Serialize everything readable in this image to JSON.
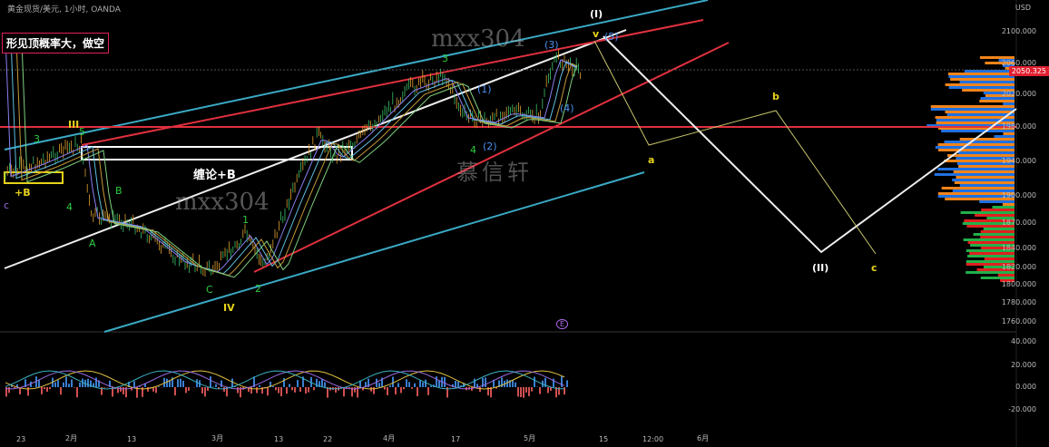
{
  "header": {
    "title": "黄金现货/美元, 1小时, OANDA",
    "currency": "USD",
    "current_price": "2050.325"
  },
  "annotation_box": "形见顶概率大，做空",
  "watermarks": [
    "mxx304",
    "mxx304",
    "慕信轩"
  ],
  "pattern_label": "缠论+B",
  "wave_labels": {
    "I": "(I)",
    "II": "(II)",
    "III": "III",
    "IV": "IV",
    "a": "a",
    "b": "b",
    "c": "c",
    "plusB": "+B",
    "g1": "1",
    "g2": "2",
    "g3": "3",
    "g4": "4",
    "g5": "5",
    "gA": "A",
    "gB": "B",
    "gC": "C",
    "b1": "(1)",
    "b2": "(2)",
    "b3": "(3)",
    "b4": "(4)",
    "b5": "(5)",
    "y4": "4",
    "y3": "3",
    "v": "v",
    "c_small": "c",
    "event": "E"
  },
  "chart_data": {
    "type": "line",
    "title": "黄金现货/美元, 1小时, OANDA",
    "ylim": [
      1750,
      2120
    ],
    "yticks": [
      "2100.000",
      "2060.000",
      "2020.000",
      "1980.000",
      "1940.000",
      "1900.000",
      "1870.000",
      "1840.000",
      "1820.000",
      "1800.000",
      "1780.000",
      "1760.000"
    ],
    "xticks": [
      "23",
      "2月",
      "13",
      "3月",
      "13",
      "22",
      "4月",
      "17",
      "5月",
      "15",
      "12:00",
      "6月"
    ],
    "series": [
      {
        "x": [
          "23",
          "2月",
          "13",
          "3月",
          "13",
          "22",
          "4月",
          "17",
          "5月"
        ],
        "y": [
          1930,
          1955,
          1850,
          1810,
          1860,
          1995,
          2005,
          2010,
          2060
        ]
      }
    ],
    "projection": {
      "name": "white wave path",
      "points": [
        "(I) 2085",
        "(II) 1840",
        "1995"
      ]
    },
    "horizontal_level": 1980,
    "oscillator": {
      "yticks": [
        "40.000",
        "20.000",
        "0.000",
        "-20.000"
      ]
    }
  }
}
